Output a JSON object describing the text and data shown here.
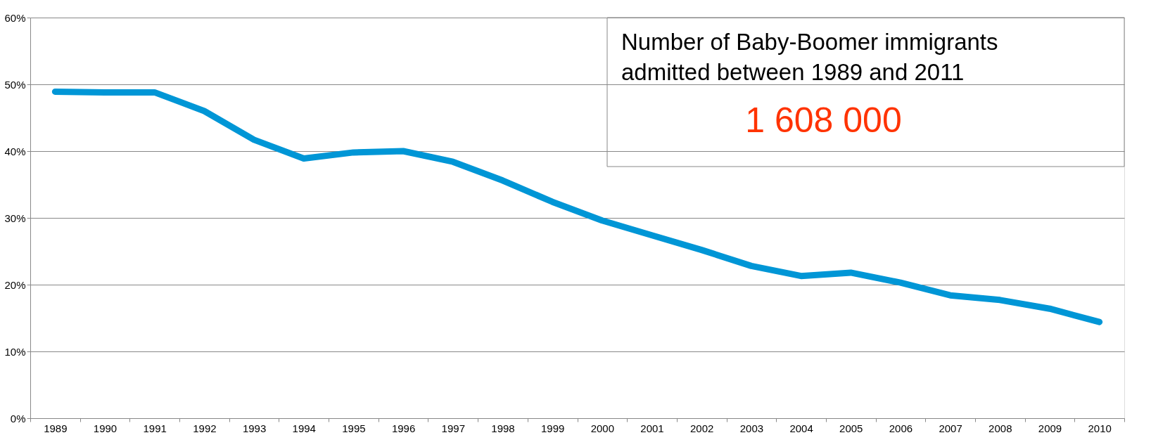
{
  "chart_data": {
    "type": "line",
    "categories": [
      "1989",
      "1990",
      "1991",
      "1992",
      "1993",
      "1994",
      "1995",
      "1996",
      "1997",
      "1998",
      "1999",
      "2000",
      "2001",
      "2002",
      "2003",
      "2004",
      "2005",
      "2006",
      "2007",
      "2008",
      "2009",
      "2010"
    ],
    "series": [
      {
        "color": "#0096d6",
        "values": [
          48.9,
          48.8,
          48.8,
          46.0,
          41.7,
          38.9,
          39.8,
          40.0,
          38.4,
          35.6,
          32.4,
          29.6,
          27.4,
          25.2,
          22.8,
          21.3,
          21.8,
          20.3,
          18.4,
          17.7,
          16.4,
          14.4
        ]
      }
    ],
    "ylim": [
      0,
      60
    ],
    "yticks": [
      {
        "value": 0,
        "label": "0%"
      },
      {
        "value": 10,
        "label": "10%"
      },
      {
        "value": 20,
        "label": "20%"
      },
      {
        "value": 30,
        "label": "30%"
      },
      {
        "value": 40,
        "label": "40%"
      },
      {
        "value": 50,
        "label": "50%"
      },
      {
        "value": 60,
        "label": "60%"
      }
    ],
    "grid": "y",
    "line_style": "solid",
    "annotations": [
      "Number of Baby-Boomer immigrants admitted between 1989 and 2011",
      "1 608 000"
    ]
  }
}
